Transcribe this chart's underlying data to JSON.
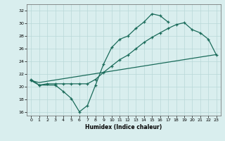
{
  "xlabel": "Humidex (Indice chaleur)",
  "bg_color": "#d9eeee",
  "grid_color": "#b8d8d8",
  "line_color": "#1a6b5a",
  "xlim": [
    -0.5,
    23.5
  ],
  "ylim": [
    15.5,
    33.0
  ],
  "xticks": [
    0,
    1,
    2,
    3,
    4,
    5,
    6,
    7,
    8,
    9,
    10,
    11,
    12,
    13,
    14,
    15,
    16,
    17,
    18,
    19,
    20,
    21,
    22,
    23
  ],
  "yticks": [
    16,
    18,
    20,
    22,
    24,
    26,
    28,
    30,
    32
  ],
  "line1_x": [
    0,
    1,
    3,
    4,
    5,
    6,
    7,
    8,
    9,
    10,
    11,
    12,
    13,
    14,
    15,
    16,
    17
  ],
  "line1_y": [
    21.2,
    20.3,
    20.3,
    19.3,
    18.2,
    16.1,
    17.1,
    20.3,
    23.6,
    26.2,
    27.5,
    28.0,
    29.2,
    30.2,
    31.5,
    31.2,
    30.2
  ],
  "line2_x": [
    0,
    1,
    2,
    3,
    4,
    5,
    6,
    7,
    8,
    9,
    10,
    11,
    12,
    13,
    14,
    15,
    16,
    17,
    18,
    19,
    20,
    21,
    22,
    23
  ],
  "line2_y": [
    21.0,
    20.3,
    20.5,
    20.5,
    20.5,
    20.5,
    20.5,
    20.5,
    21.2,
    22.3,
    23.3,
    24.3,
    25.0,
    26.0,
    27.0,
    27.8,
    28.5,
    29.2,
    29.8,
    30.1,
    29.0,
    28.5,
    27.5,
    25.0
  ],
  "line3_x": [
    0,
    1,
    2,
    3,
    4,
    5,
    6,
    7,
    8,
    9,
    10,
    11,
    12,
    13,
    14,
    15,
    16,
    17,
    18,
    19,
    20,
    21,
    22,
    23
  ],
  "line3_y": [
    21.0,
    20.7,
    20.9,
    21.1,
    21.3,
    21.5,
    21.7,
    21.9,
    22.1,
    22.3,
    22.5,
    22.7,
    22.9,
    23.1,
    23.3,
    23.5,
    23.7,
    23.9,
    24.1,
    24.3,
    24.5,
    24.7,
    24.9,
    25.1
  ]
}
